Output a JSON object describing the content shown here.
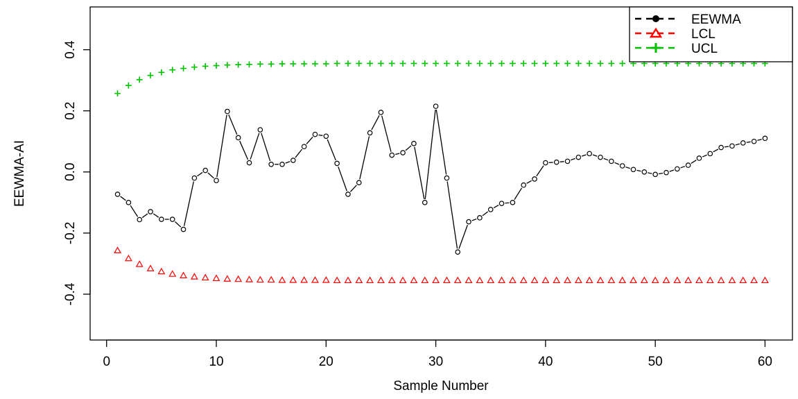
{
  "chart_data": {
    "type": "line",
    "xlabel": "Sample Number",
    "ylabel": "EEWMA-AI",
    "xlim": [
      -1.5,
      62.5
    ],
    "ylim": [
      -0.55,
      0.54
    ],
    "x_ticks": [
      0,
      10,
      20,
      30,
      40,
      50,
      60
    ],
    "x_tick_labels": [
      "0",
      "10",
      "20",
      "30",
      "40",
      "50",
      "60"
    ],
    "y_ticks": [
      -0.4,
      -0.2,
      0.0,
      0.2,
      0.4
    ],
    "y_tick_labels": [
      "-0.4",
      "-0.2",
      "0.0",
      "0.2",
      "0.4"
    ],
    "grid": false,
    "legend_position": "top-right",
    "x": [
      1,
      2,
      3,
      4,
      5,
      6,
      7,
      8,
      9,
      10,
      11,
      12,
      13,
      14,
      15,
      16,
      17,
      18,
      19,
      20,
      21,
      22,
      23,
      24,
      25,
      26,
      27,
      28,
      29,
      30,
      31,
      32,
      33,
      34,
      35,
      36,
      37,
      38,
      39,
      40,
      41,
      42,
      43,
      44,
      45,
      46,
      47,
      48,
      49,
      50,
      51,
      52,
      53,
      54,
      55,
      56,
      57,
      58,
      59,
      60
    ],
    "series": [
      {
        "name": "EEWMA",
        "color": "#000000",
        "marker": "circle",
        "line": true,
        "values": [
          -0.073,
          -0.1,
          -0.156,
          -0.13,
          -0.155,
          -0.155,
          -0.188,
          -0.02,
          0.005,
          -0.028,
          0.198,
          0.112,
          0.03,
          0.138,
          0.025,
          0.025,
          0.038,
          0.083,
          0.123,
          0.117,
          0.028,
          -0.073,
          -0.035,
          0.128,
          0.195,
          0.055,
          0.063,
          0.093,
          -0.1,
          0.215,
          -0.02,
          -0.262,
          -0.163,
          -0.15,
          -0.123,
          -0.103,
          -0.1,
          -0.043,
          -0.023,
          0.03,
          0.032,
          0.035,
          0.048,
          0.06,
          0.048,
          0.035,
          0.02,
          0.008,
          0.0,
          -0.008,
          -0.002,
          0.01,
          0.022,
          0.045,
          0.06,
          0.08,
          0.085,
          0.095,
          0.1,
          0.11
        ]
      },
      {
        "name": "LCL",
        "color": "#ff0000",
        "marker": "triangle",
        "line": false,
        "values": [
          -0.257,
          -0.283,
          -0.302,
          -0.316,
          -0.326,
          -0.334,
          -0.339,
          -0.343,
          -0.346,
          -0.348,
          -0.35,
          -0.351,
          -0.352,
          -0.353,
          -0.353,
          -0.354,
          -0.354,
          -0.354,
          -0.354,
          -0.354,
          -0.355,
          -0.355,
          -0.355,
          -0.355,
          -0.355,
          -0.355,
          -0.355,
          -0.355,
          -0.355,
          -0.355,
          -0.355,
          -0.355,
          -0.355,
          -0.355,
          -0.355,
          -0.355,
          -0.355,
          -0.355,
          -0.355,
          -0.355,
          -0.355,
          -0.355,
          -0.355,
          -0.355,
          -0.355,
          -0.355,
          -0.355,
          -0.355,
          -0.355,
          -0.355,
          -0.355,
          -0.355,
          -0.355,
          -0.355,
          -0.355,
          -0.355,
          -0.355,
          -0.355,
          -0.355,
          -0.355
        ]
      },
      {
        "name": "UCL",
        "color": "#00c000",
        "marker": "plus",
        "line": false,
        "values": [
          0.257,
          0.283,
          0.302,
          0.316,
          0.326,
          0.334,
          0.339,
          0.343,
          0.346,
          0.348,
          0.35,
          0.351,
          0.352,
          0.353,
          0.353,
          0.354,
          0.354,
          0.354,
          0.354,
          0.354,
          0.355,
          0.355,
          0.355,
          0.355,
          0.355,
          0.355,
          0.355,
          0.355,
          0.355,
          0.355,
          0.355,
          0.355,
          0.355,
          0.355,
          0.355,
          0.355,
          0.355,
          0.355,
          0.355,
          0.355,
          0.355,
          0.355,
          0.355,
          0.355,
          0.355,
          0.355,
          0.355,
          0.355,
          0.355,
          0.355,
          0.355,
          0.355,
          0.355,
          0.355,
          0.355,
          0.355,
          0.355,
          0.355,
          0.355,
          0.355
        ]
      }
    ]
  }
}
